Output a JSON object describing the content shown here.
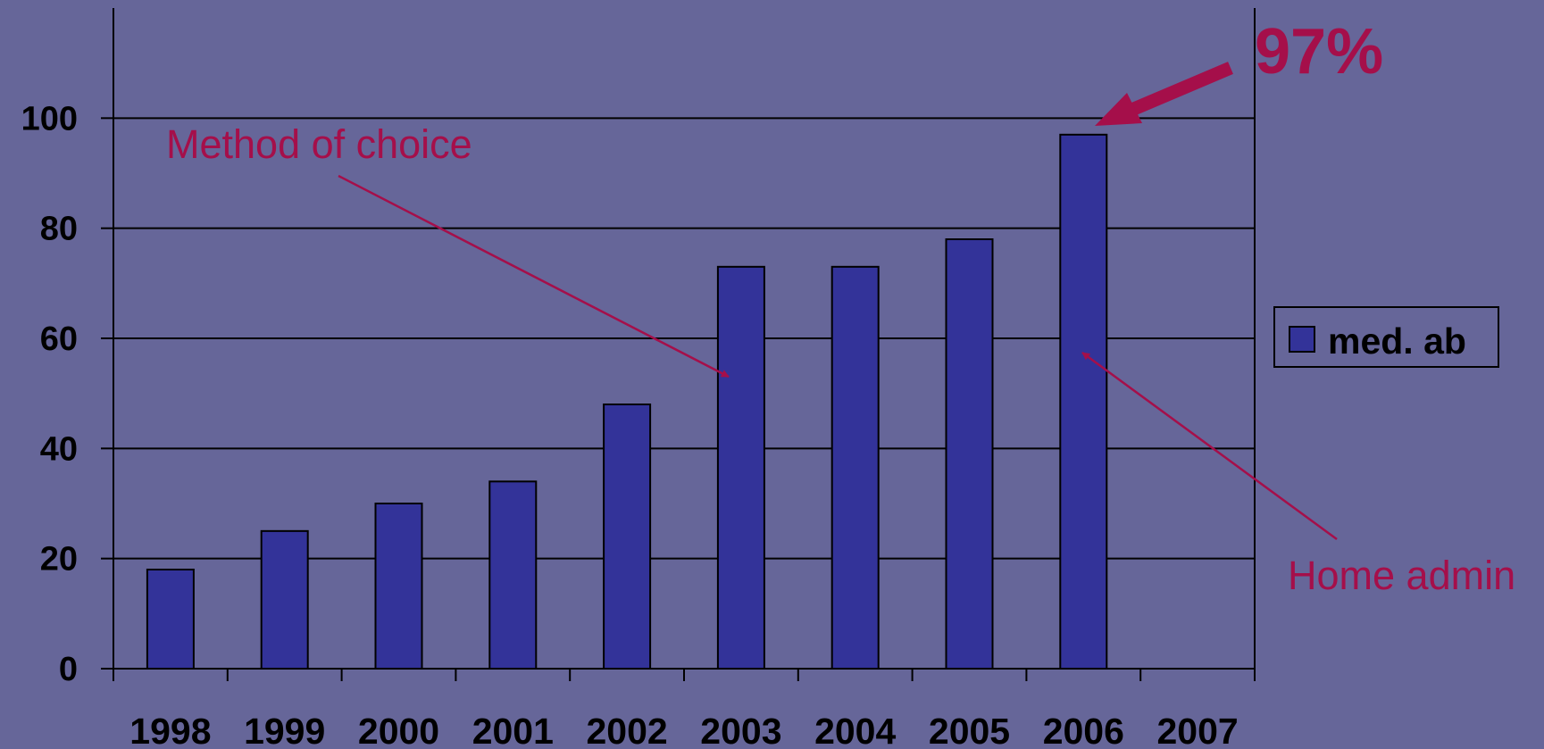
{
  "chart_data": {
    "type": "bar",
    "categories": [
      "1998",
      "1999",
      "2000",
      "2001",
      "2002",
      "2003",
      "2004",
      "2005",
      "2006",
      "2007"
    ],
    "series": [
      {
        "name": "med. ab",
        "values": [
          18,
          25,
          30,
          34,
          48,
          73,
          73,
          78,
          97,
          null
        ]
      }
    ],
    "yticks": [
      "0",
      "20",
      "40",
      "60",
      "80",
      "100"
    ],
    "ylim": [
      0,
      120
    ],
    "grid": true,
    "legend": "right",
    "annotations": {
      "method_of_choice": "Method of choice",
      "home_admin": "Home admin",
      "percent": "97%"
    },
    "colors": {
      "background": "#666699",
      "bar": "#333399",
      "annotation": "#a50f4a",
      "axis": "#000000"
    }
  }
}
